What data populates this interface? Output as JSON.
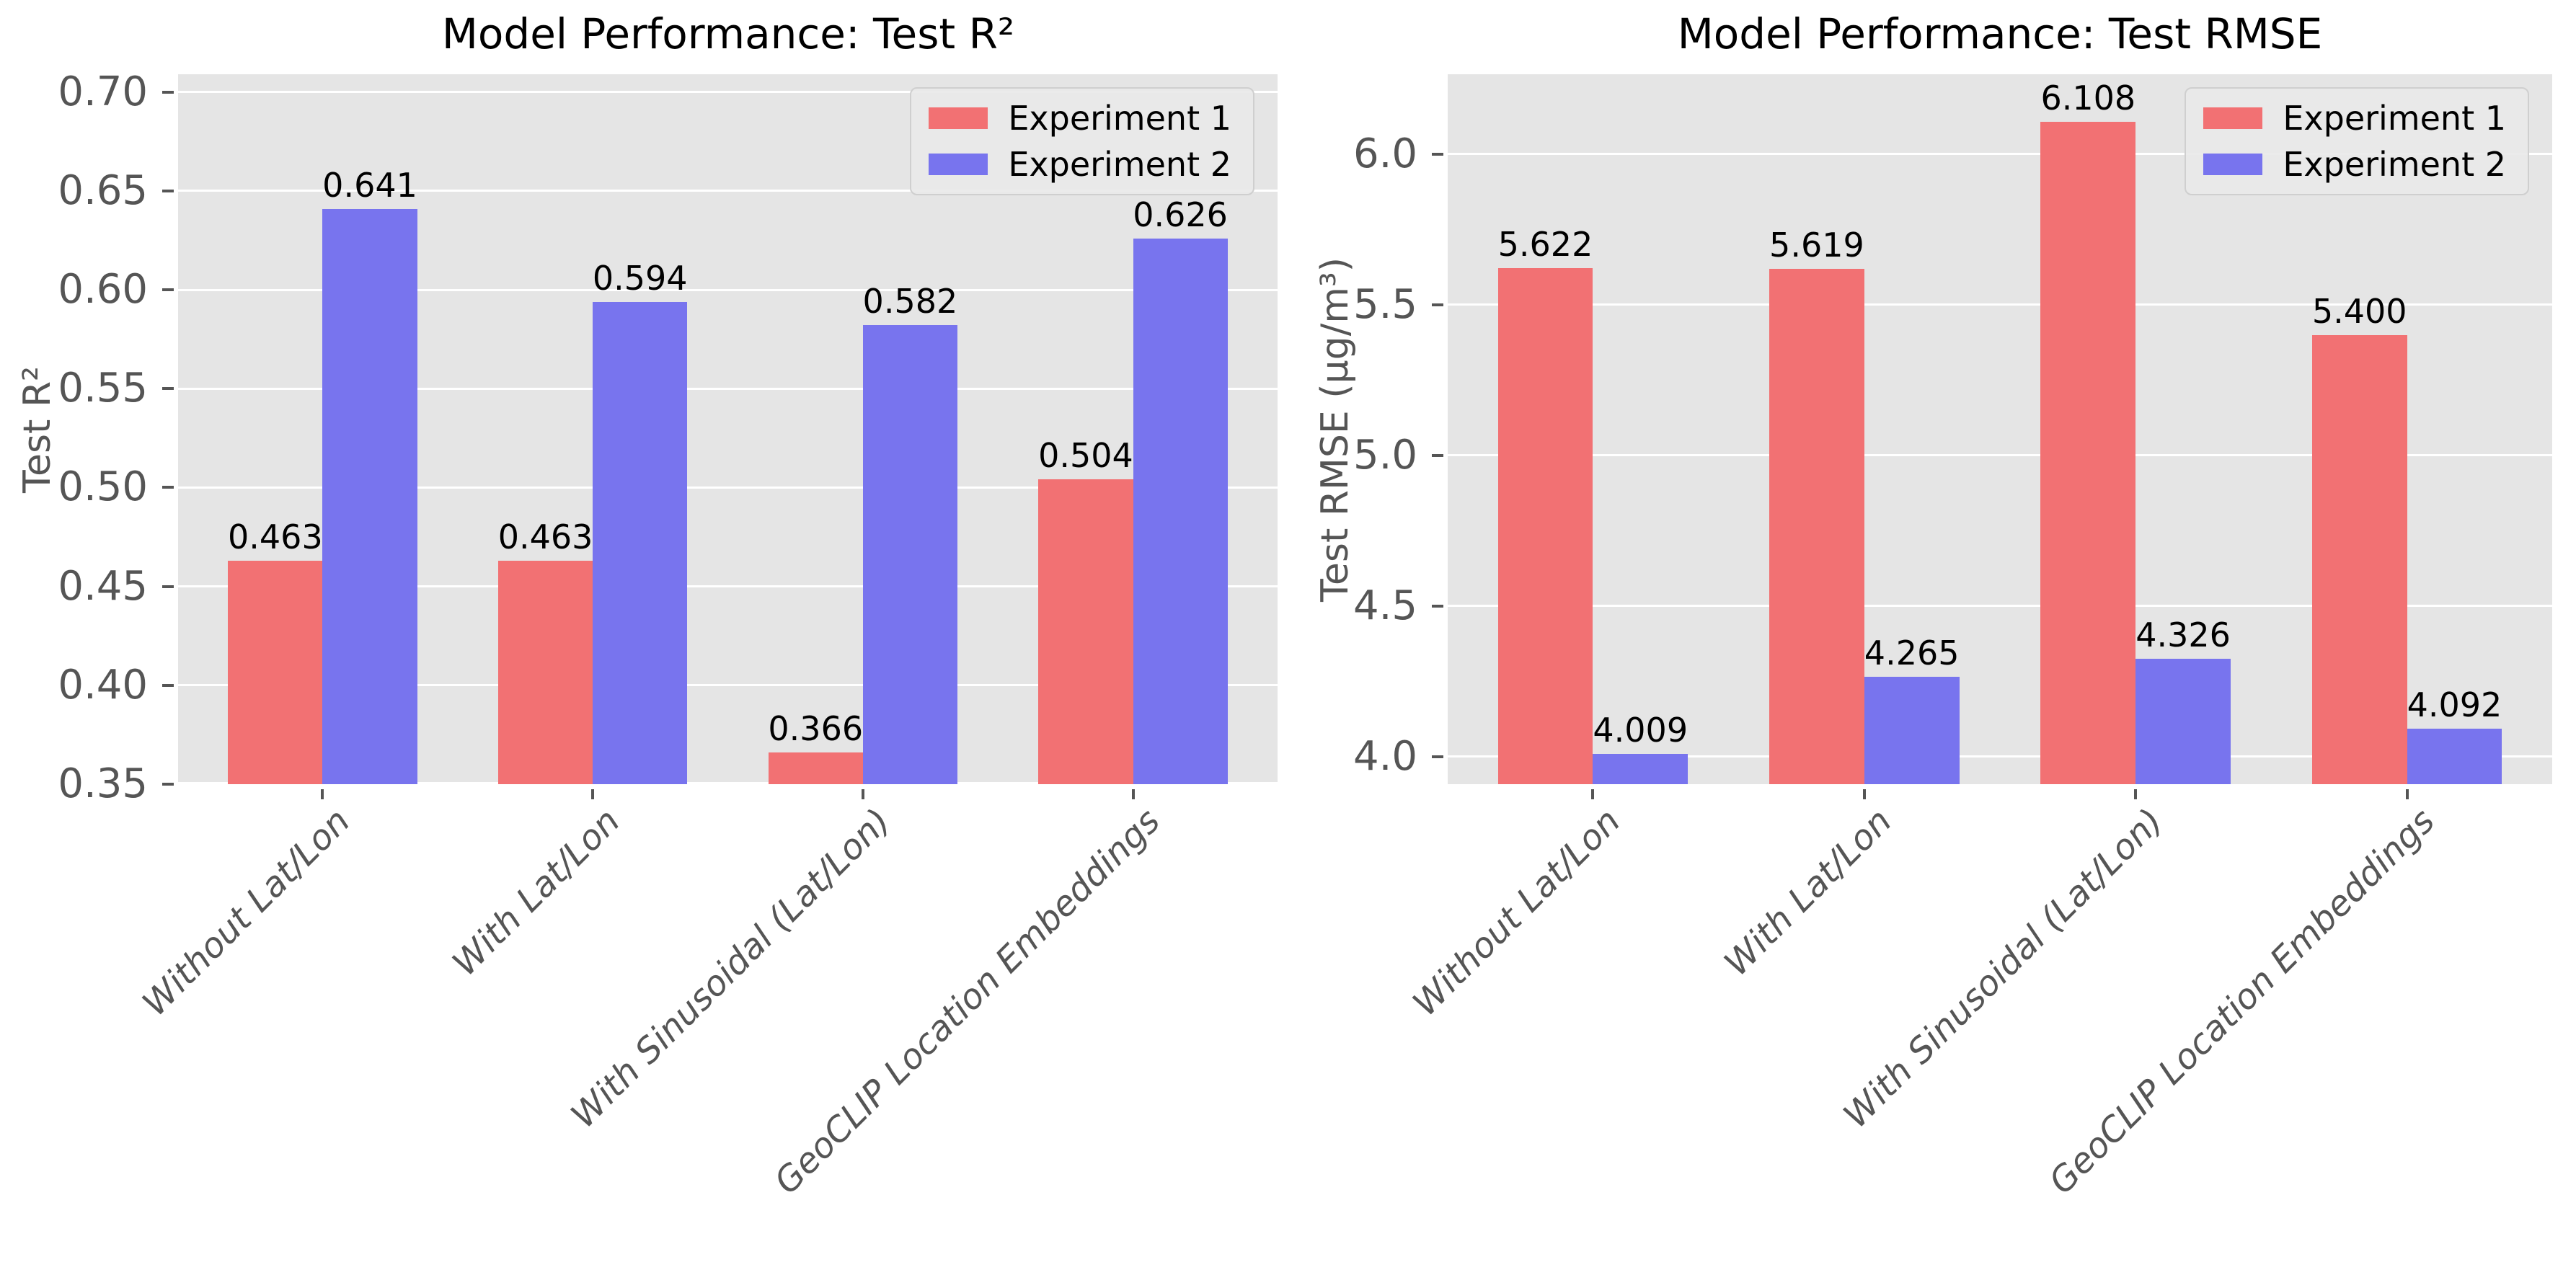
{
  "figure": {
    "background": "#ffffff",
    "plot_background": "#e5e5e5",
    "grid_color": "#ffffff",
    "tick_color": "#555555",
    "label_color": "#555555",
    "title_color": "#000000",
    "series_colors": [
      "#f27173",
      "#7874ee"
    ]
  },
  "chart_data": [
    {
      "type": "bar",
      "title": "Model Performance: Test R²",
      "xlabel": "",
      "ylabel": "Test R²",
      "categories": [
        "Without Lat/Lon",
        "With Lat/Lon",
        "With Sinusoidal (Lat/Lon)",
        "GeoCLIP Location Embeddings"
      ],
      "series": [
        {
          "name": "Experiment 1",
          "color": "#f27173",
          "values": [
            0.463,
            0.463,
            0.366,
            0.504
          ]
        },
        {
          "name": "Experiment 2",
          "color": "#7874ee",
          "values": [
            0.641,
            0.594,
            0.582,
            0.626
          ]
        }
      ],
      "value_label_decimals": 3,
      "bar_width": 0.35,
      "ylim": [
        0.35,
        0.709
      ],
      "yticks": [
        0.35,
        0.4,
        0.45,
        0.5,
        0.55,
        0.6,
        0.65,
        0.7
      ],
      "ytick_labels": [
        "0.35",
        "0.40",
        "0.45",
        "0.50",
        "0.55",
        "0.60",
        "0.65",
        "0.70"
      ],
      "grid": true,
      "legend_position": "upper right"
    },
    {
      "type": "bar",
      "title": "Model Performance: Test RMSE",
      "xlabel": "",
      "ylabel": "Test RMSE (μg/m³)",
      "categories": [
        "Without Lat/Lon",
        "With Lat/Lon",
        "With Sinusoidal (Lat/Lon)",
        "GeoCLIP Location Embeddings"
      ],
      "series": [
        {
          "name": "Experiment 1",
          "color": "#f27173",
          "values": [
            5.622,
            5.619,
            6.108,
            5.4
          ]
        },
        {
          "name": "Experiment 2",
          "color": "#7874ee",
          "values": [
            4.009,
            4.265,
            4.326,
            4.092
          ]
        }
      ],
      "value_label_decimals": 3,
      "bar_width": 0.35,
      "ylim": [
        3.909,
        6.265
      ],
      "yticks": [
        4.0,
        4.5,
        5.0,
        5.5,
        6.0
      ],
      "ytick_labels": [
        "4.0",
        "4.5",
        "5.0",
        "5.5",
        "6.0"
      ],
      "grid": true,
      "legend_position": "upper right"
    }
  ]
}
